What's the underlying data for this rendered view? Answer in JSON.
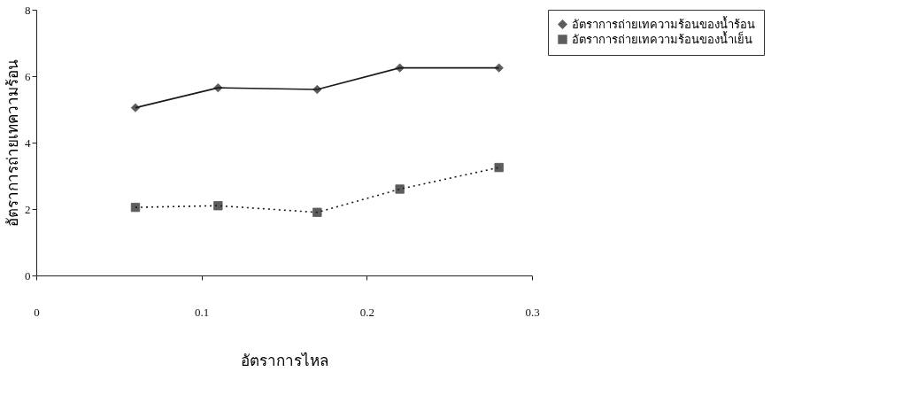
{
  "chart_data": {
    "type": "line",
    "xlabel": "อัตราการไหล",
    "ylabel": "อัตราการถ่ายเทความร้อน",
    "x": [
      0.06,
      0.11,
      0.17,
      0.22,
      0.28
    ],
    "series": [
      {
        "name": "อัตราการถ่ายเทความร้อนของน้ำร้อน",
        "color": "#1a1a1a",
        "marker": "diamond",
        "line_style": "solid",
        "values": [
          5.05,
          5.65,
          5.6,
          6.25,
          6.25
        ]
      },
      {
        "name": "อัตราการถ่ายเทความร้อนของน้ำเย็น",
        "color": "#1a1a1a",
        "marker": "square",
        "line_style": "dotted",
        "values": [
          2.05,
          2.1,
          1.9,
          2.6,
          3.25
        ]
      }
    ],
    "xlim": [
      0,
      0.3
    ],
    "xticks": [
      0,
      0.1,
      0.2,
      0.3
    ],
    "ylim": [
      0,
      8
    ],
    "yticks": [
      0,
      2,
      4,
      6,
      8
    ],
    "grid": false,
    "legend": "right"
  }
}
